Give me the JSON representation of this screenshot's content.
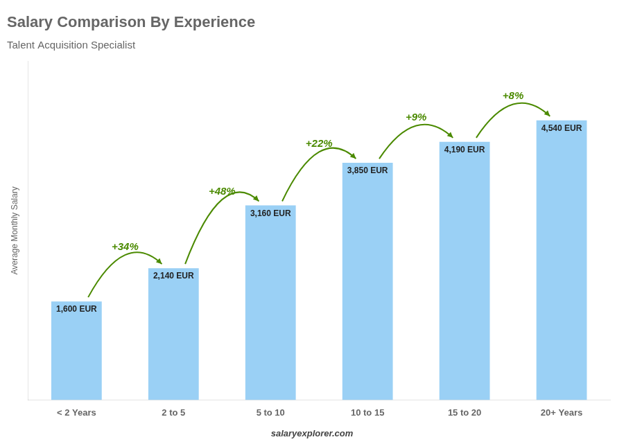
{
  "chart_data": {
    "type": "bar",
    "title": "Salary Comparison By Experience",
    "subtitle": "Talent Acquisition Specialist",
    "categories": [
      "< 2 Years",
      "2 to 5",
      "5 to 10",
      "10 to 15",
      "15 to 20",
      "20+ Years"
    ],
    "values": [
      1600,
      2140,
      3160,
      3850,
      4190,
      4540
    ],
    "value_labels": [
      "1,600 EUR",
      "2,140 EUR",
      "3,160 EUR",
      "3,850 EUR",
      "4,190 EUR",
      "4,540 EUR"
    ],
    "data_labels": true,
    "annotations": [
      "+34%",
      "+48%",
      "+22%",
      "+9%",
      "+8%"
    ],
    "footer": "salaryexplorer.com",
    "ylabel": "Average Monthly Salary",
    "ylim": [
      0,
      5500
    ],
    "grid": false,
    "tick_labels": "x"
  }
}
